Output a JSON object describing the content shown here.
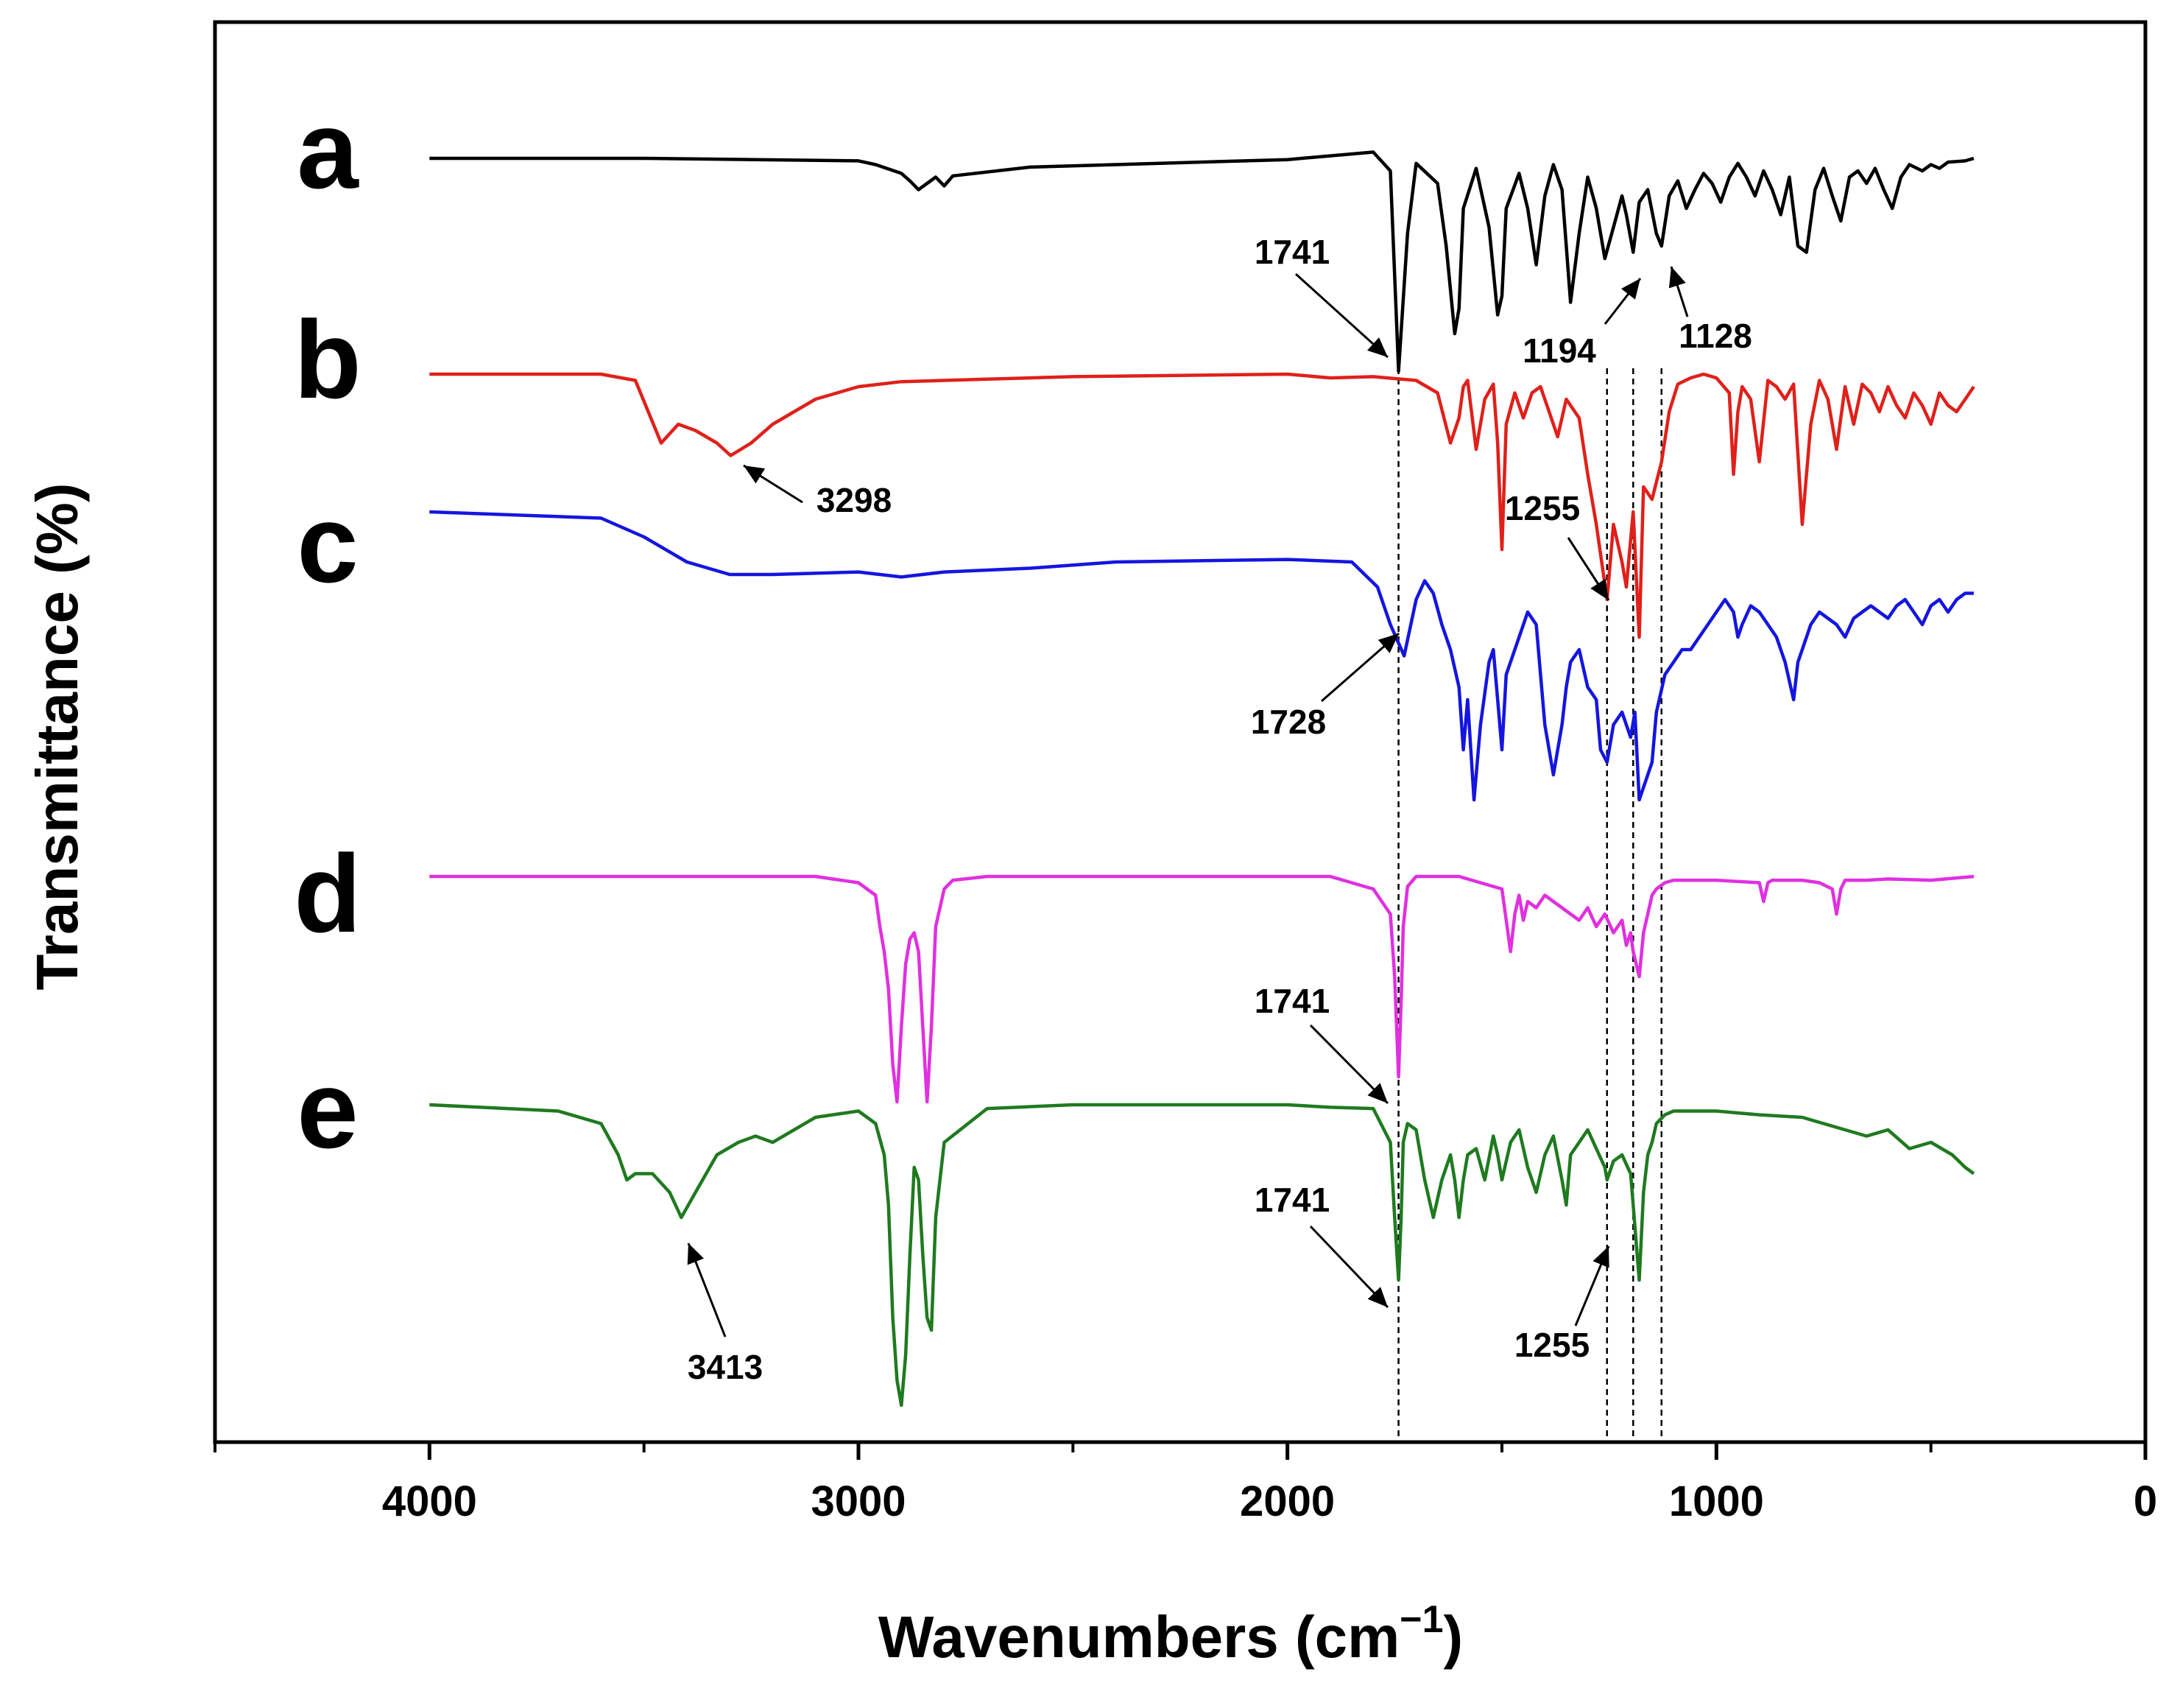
{
  "chart_data": {
    "type": "line",
    "title": "",
    "xlabel": "Wavenumbers (cm",
    "xlabel_superscript": "−1",
    "xlabel_suffix": ")",
    "ylabel": "Transmittance (%)",
    "xlim": [
      4500,
      0
    ],
    "x_reversed": true,
    "x_ticks": [
      4000,
      3000,
      2000,
      1000,
      0
    ],
    "y_ticks_shown": false,
    "series": [
      {
        "name": "a",
        "color": "#000000",
        "offset": 100,
        "x": [
          4000,
          3500,
          3000,
          2960,
          2900,
          2880,
          2860,
          2840,
          2820,
          2800,
          2780,
          2600,
          2400,
          2000,
          1800,
          1760,
          1741,
          1720,
          1700,
          1650,
          1630,
          1610,
          1600,
          1590,
          1560,
          1530,
          1510,
          1500,
          1490,
          1460,
          1440,
          1420,
          1400,
          1380,
          1360,
          1340,
          1320,
          1300,
          1280,
          1260,
          1240,
          1220,
          1210,
          1194,
          1180,
          1160,
          1140,
          1128,
          1110,
          1090,
          1070,
          1050,
          1030,
          1010,
          990,
          970,
          950,
          930,
          910,
          890,
          870,
          850,
          830,
          810,
          790,
          770,
          750,
          730,
          710,
          690,
          670,
          650,
          630,
          610,
          590,
          570,
          550,
          520,
          500,
          480,
          460,
          420,
          400
        ],
        "y": [
          0,
          0,
          -2,
          -5,
          -12,
          -18,
          -25,
          -20,
          -15,
          -22,
          -14,
          -7,
          -5,
          -1,
          5,
          -10,
          -170,
          -60,
          -4,
          -20,
          -70,
          -140,
          -120,
          -40,
          -8,
          -55,
          -125,
          -110,
          -40,
          -12,
          -40,
          -85,
          -30,
          -5,
          -25,
          -115,
          -60,
          -15,
          -40,
          -80,
          -55,
          -30,
          -45,
          -75,
          -35,
          -25,
          -60,
          -70,
          -30,
          -18,
          -40,
          -25,
          -12,
          -20,
          -35,
          -15,
          -4,
          -15,
          -30,
          -10,
          -25,
          -45,
          -15,
          -70,
          -75,
          -25,
          -8,
          -30,
          -50,
          -15,
          -10,
          -20,
          -8,
          -25,
          -40,
          -15,
          -5,
          -10,
          -5,
          -8,
          -3,
          -2,
          0
        ]
      },
      {
        "name": "b",
        "color": "#e0201a",
        "offset": 0,
        "x": [
          4000,
          3600,
          3520,
          3490,
          3460,
          3420,
          3380,
          3330,
          3298,
          3250,
          3200,
          3100,
          3000,
          2900,
          2700,
          2500,
          2000,
          1900,
          1800,
          1700,
          1650,
          1620,
          1600,
          1590,
          1580,
          1560,
          1540,
          1520,
          1510,
          1500,
          1490,
          1470,
          1450,
          1430,
          1410,
          1390,
          1370,
          1350,
          1320,
          1300,
          1280,
          1255,
          1240,
          1220,
          1210,
          1194,
          1180,
          1170,
          1150,
          1128,
          1110,
          1090,
          1060,
          1030,
          1000,
          970,
          960,
          950,
          940,
          920,
          900,
          880,
          860,
          840,
          820,
          800,
          780,
          760,
          740,
          720,
          700,
          680,
          660,
          640,
          620,
          600,
          580,
          560,
          540,
          520,
          500,
          480,
          460,
          440,
          420,
          400
        ],
        "y": [
          0,
          0,
          -5,
          -30,
          -55,
          -40,
          -45,
          -55,
          -65,
          -55,
          -40,
          -20,
          -10,
          -6,
          -4,
          -2,
          0,
          -3,
          -2,
          -5,
          -15,
          -55,
          -35,
          -10,
          -5,
          -60,
          -20,
          -8,
          -55,
          -140,
          -40,
          -15,
          -35,
          -15,
          -10,
          -30,
          -50,
          -20,
          -35,
          -80,
          -120,
          -180,
          -120,
          -150,
          -170,
          -110,
          -210,
          -90,
          -100,
          -70,
          -30,
          -8,
          -3,
          0,
          -3,
          -15,
          -80,
          -30,
          -10,
          -20,
          -70,
          -5,
          -10,
          -20,
          -8,
          -120,
          -40,
          -5,
          -20,
          -60,
          -10,
          -40,
          -8,
          -15,
          -30,
          -10,
          -25,
          -35,
          -15,
          -25,
          -40,
          -15,
          -25,
          -30,
          -20,
          -10
        ]
      },
      {
        "name": "c",
        "color": "#1515e0",
        "offset": 0,
        "x": [
          4000,
          3600,
          3500,
          3400,
          3300,
          3200,
          3000,
          2900,
          2800,
          2600,
          2400,
          2000,
          1850,
          1790,
          1760,
          1728,
          1700,
          1680,
          1660,
          1640,
          1620,
          1600,
          1590,
          1580,
          1565,
          1550,
          1530,
          1520,
          1510,
          1500,
          1490,
          1470,
          1440,
          1420,
          1400,
          1380,
          1360,
          1350,
          1340,
          1320,
          1300,
          1280,
          1270,
          1255,
          1240,
          1220,
          1200,
          1190,
          1180,
          1160,
          1150,
          1140,
          1120,
          1100,
          1080,
          1060,
          1040,
          1020,
          1000,
          980,
          960,
          950,
          940,
          920,
          900,
          880,
          860,
          840,
          820,
          810,
          800,
          780,
          760,
          740,
          720,
          700,
          680,
          660,
          640,
          620,
          600,
          580,
          560,
          540,
          520,
          500,
          480,
          460,
          440,
          420,
          400
        ],
        "y": [
          0,
          -5,
          -20,
          -40,
          -50,
          -50,
          -48,
          -52,
          -48,
          -45,
          -40,
          -38,
          -40,
          -60,
          -90,
          -115,
          -70,
          -55,
          -65,
          -90,
          -110,
          -140,
          -190,
          -150,
          -230,
          -170,
          -120,
          -110,
          -150,
          -190,
          -130,
          -110,
          -80,
          -90,
          -170,
          -210,
          -170,
          -140,
          -120,
          -110,
          -140,
          -150,
          -190,
          -200,
          -170,
          -160,
          -180,
          -160,
          -230,
          -210,
          -200,
          -160,
          -130,
          -120,
          -110,
          -110,
          -100,
          -90,
          -80,
          -70,
          -80,
          -100,
          -90,
          -75,
          -80,
          -90,
          -100,
          -120,
          -150,
          -120,
          -110,
          -90,
          -80,
          -85,
          -90,
          -100,
          -85,
          -80,
          -75,
          -80,
          -85,
          -75,
          -70,
          -80,
          -90,
          -75,
          -70,
          -80,
          -70,
          -65,
          -65
        ]
      },
      {
        "name": "d",
        "color": "#e030e0",
        "offset": 0,
        "x": [
          4000,
          3100,
          3000,
          2960,
          2950,
          2940,
          2930,
          2920,
          2910,
          2900,
          2890,
          2880,
          2870,
          2860,
          2850,
          2840,
          2830,
          2820,
          2800,
          2780,
          2700,
          2500,
          2200,
          2000,
          1900,
          1800,
          1760,
          1750,
          1741,
          1735,
          1730,
          1720,
          1700,
          1650,
          1600,
          1550,
          1500,
          1480,
          1470,
          1460,
          1450,
          1440,
          1420,
          1400,
          1380,
          1360,
          1340,
          1320,
          1300,
          1280,
          1260,
          1240,
          1220,
          1210,
          1200,
          1194,
          1180,
          1170,
          1160,
          1150,
          1140,
          1120,
          1100,
          1000,
          900,
          890,
          880,
          870,
          800,
          760,
          730,
          720,
          710,
          700,
          650,
          600,
          500,
          400
        ],
        "y": [
          0,
          0,
          -5,
          -15,
          -40,
          -60,
          -90,
          -150,
          -180,
          -120,
          -70,
          -50,
          -45,
          -60,
          -120,
          -180,
          -120,
          -40,
          -10,
          -3,
          0,
          0,
          0,
          0,
          0,
          -10,
          -30,
          -80,
          -160,
          -100,
          -40,
          -8,
          0,
          0,
          0,
          -5,
          -10,
          -60,
          -30,
          -15,
          -35,
          -20,
          -25,
          -15,
          -20,
          -25,
          -30,
          -35,
          -25,
          -40,
          -30,
          -45,
          -35,
          -55,
          -45,
          -60,
          -80,
          -45,
          -30,
          -15,
          -10,
          -5,
          -3,
          -3,
          -5,
          -20,
          -5,
          -3,
          -3,
          -5,
          -10,
          -30,
          -10,
          -3,
          -3,
          -2,
          -3,
          0
        ]
      },
      {
        "name": "e",
        "color": "#1f7a1f",
        "offset": 0,
        "x": [
          4000,
          3700,
          3600,
          3560,
          3540,
          3520,
          3480,
          3440,
          3413,
          3380,
          3330,
          3280,
          3240,
          3200,
          3100,
          3000,
          2960,
          2940,
          2930,
          2920,
          2910,
          2900,
          2890,
          2880,
          2870,
          2860,
          2850,
          2840,
          2830,
          2820,
          2800,
          2700,
          2500,
          2200,
          2000,
          1900,
          1800,
          1760,
          1750,
          1741,
          1735,
          1730,
          1720,
          1700,
          1680,
          1660,
          1640,
          1620,
          1610,
          1600,
          1590,
          1580,
          1560,
          1540,
          1520,
          1510,
          1500,
          1480,
          1460,
          1440,
          1420,
          1400,
          1380,
          1360,
          1350,
          1340,
          1320,
          1300,
          1280,
          1260,
          1255,
          1240,
          1220,
          1200,
          1194,
          1180,
          1170,
          1160,
          1150,
          1140,
          1120,
          1100,
          1000,
          900,
          800,
          750,
          700,
          650,
          600,
          550,
          500,
          450,
          420,
          400
        ],
        "y": [
          0,
          -5,
          -15,
          -40,
          -60,
          -55,
          -55,
          -70,
          -90,
          -70,
          -40,
          -30,
          -25,
          -30,
          -10,
          -5,
          -15,
          -40,
          -80,
          -170,
          -220,
          -240,
          -200,
          -120,
          -50,
          -60,
          -120,
          -170,
          -180,
          -90,
          -30,
          -3,
          0,
          0,
          0,
          -2,
          -3,
          -30,
          -90,
          -140,
          -90,
          -30,
          -15,
          -20,
          -60,
          -90,
          -60,
          -40,
          -60,
          -90,
          -60,
          -40,
          -35,
          -60,
          -25,
          -40,
          -60,
          -30,
          -20,
          -50,
          -70,
          -40,
          -25,
          -60,
          -80,
          -40,
          -30,
          -20,
          -35,
          -50,
          -60,
          -45,
          -40,
          -55,
          -80,
          -140,
          -70,
          -40,
          -30,
          -15,
          -8,
          -5,
          -5,
          -8,
          -10,
          -15,
          -20,
          -25,
          -20,
          -35,
          -30,
          -40,
          -50,
          -55
        ]
      }
    ],
    "reference_lines_x": [
      1741,
      1255,
      1194,
      1128
    ],
    "annotations": [
      {
        "text": "1741",
        "series": "a",
        "x": 1741
      },
      {
        "text": "1194",
        "series": "a",
        "x": 1194
      },
      {
        "text": "1128",
        "series": "a",
        "x": 1128
      },
      {
        "text": "3298",
        "series": "b",
        "x": 3298
      },
      {
        "text": "1255",
        "series": "b",
        "x": 1255
      },
      {
        "text": "1728",
        "series": "c",
        "x": 1728
      },
      {
        "text": "1741",
        "series": "d",
        "x": 1741
      },
      {
        "text": "1741",
        "series": "e",
        "x": 1741
      },
      {
        "text": "1255",
        "series": "e",
        "x": 1255
      },
      {
        "text": "3413",
        "series": "e",
        "x": 3413
      }
    ]
  }
}
